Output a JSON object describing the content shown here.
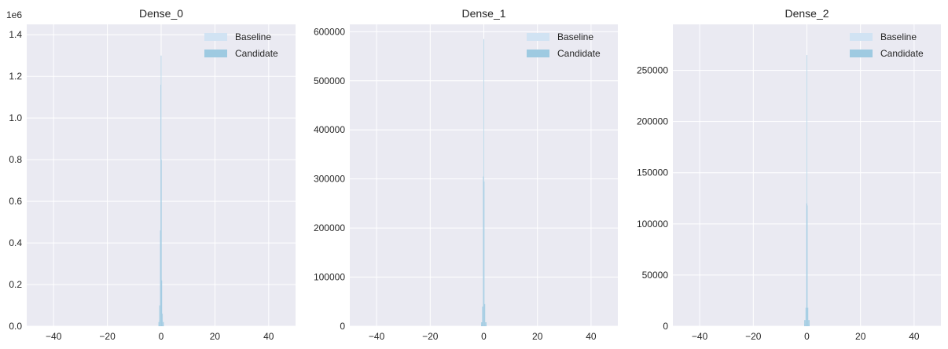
{
  "colors": {
    "background": "#eaeaf2",
    "grid": "#ffffff",
    "baseline": "#d1e3f3",
    "candidate": "#9ecae1",
    "text": "#262626"
  },
  "chart_data": [
    {
      "type": "histogram",
      "title": "Dense_0",
      "xlim": [
        -50,
        50
      ],
      "ylim": [
        0,
        1450000
      ],
      "x_ticks": [
        -40,
        -20,
        0,
        20,
        40
      ],
      "x_tick_labels": [
        "−40",
        "−20",
        "0",
        "20",
        "40"
      ],
      "y_ticks": [
        0,
        200000,
        400000,
        600000,
        800000,
        1000000,
        1200000,
        1400000
      ],
      "y_tick_labels": [
        "0.0",
        "0.2",
        "0.4",
        "0.6",
        "0.8",
        "1.0",
        "1.2",
        "1.4"
      ],
      "y_offset_label": "1e6",
      "legend": {
        "position": "upper right",
        "entries": [
          "Baseline",
          "Candidate"
        ]
      },
      "series": [
        {
          "name": "Baseline",
          "bins": [
            {
              "x0": -1.0,
              "x1": -0.7,
              "count": 3000
            },
            {
              "x0": -0.7,
              "x1": -0.4,
              "count": 30000
            },
            {
              "x0": -0.4,
              "x1": -0.2,
              "count": 460000
            },
            {
              "x0": -0.2,
              "x1": -0.1,
              "count": 1160000
            },
            {
              "x0": -0.1,
              "x1": 0.0,
              "count": 1300000
            },
            {
              "x0": 0.0,
              "x1": 0.15,
              "count": 800000
            },
            {
              "x0": 0.15,
              "x1": 0.35,
              "count": 220000
            },
            {
              "x0": 0.35,
              "x1": 0.6,
              "count": 30000
            },
            {
              "x0": 0.6,
              "x1": 1.0,
              "count": 3000
            }
          ]
        },
        {
          "name": "Candidate",
          "bins": [
            {
              "x0": -1.0,
              "x1": -0.7,
              "count": 20000
            },
            {
              "x0": -0.7,
              "x1": -0.4,
              "count": 100000
            },
            {
              "x0": -0.4,
              "x1": -0.2,
              "count": 460000
            },
            {
              "x0": -0.2,
              "x1": -0.1,
              "count": 1160000
            },
            {
              "x0": -0.1,
              "x1": 0.0,
              "count": 1300000
            },
            {
              "x0": 0.0,
              "x1": 0.15,
              "count": 800000
            },
            {
              "x0": 0.15,
              "x1": 0.35,
              "count": 220000
            },
            {
              "x0": 0.35,
              "x1": 0.6,
              "count": 60000
            },
            {
              "x0": 0.6,
              "x1": 1.0,
              "count": 20000
            }
          ]
        }
      ]
    },
    {
      "type": "histogram",
      "title": "Dense_1",
      "xlim": [
        -50,
        50
      ],
      "ylim": [
        0,
        615000
      ],
      "x_ticks": [
        -40,
        -20,
        0,
        20,
        40
      ],
      "x_tick_labels": [
        "−40",
        "−20",
        "0",
        "20",
        "40"
      ],
      "y_ticks": [
        0,
        100000,
        200000,
        300000,
        400000,
        500000,
        600000
      ],
      "y_tick_labels": [
        "0",
        "100000",
        "200000",
        "300000",
        "400000",
        "500000",
        "600000"
      ],
      "y_offset_label": "",
      "legend": {
        "position": "upper right",
        "entries": [
          "Baseline",
          "Candidate"
        ]
      },
      "series": [
        {
          "name": "Baseline",
          "bins": [
            {
              "x0": -1.0,
              "x1": -0.6,
              "count": 3000
            },
            {
              "x0": -0.6,
              "x1": -0.3,
              "count": 40000
            },
            {
              "x0": -0.3,
              "x1": -0.1,
              "count": 305000
            },
            {
              "x0": -0.1,
              "x1": 0.05,
              "count": 585000
            },
            {
              "x0": 0.05,
              "x1": 0.2,
              "count": 295000
            },
            {
              "x0": 0.2,
              "x1": 0.5,
              "count": 45000
            },
            {
              "x0": 0.5,
              "x1": 1.0,
              "count": 3000
            }
          ]
        },
        {
          "name": "Candidate",
          "bins": [
            {
              "x0": -1.0,
              "x1": -0.6,
              "count": 8000
            },
            {
              "x0": -0.6,
              "x1": -0.3,
              "count": 40000
            },
            {
              "x0": -0.3,
              "x1": -0.1,
              "count": 305000
            },
            {
              "x0": -0.1,
              "x1": 0.05,
              "count": 585000
            },
            {
              "x0": 0.05,
              "x1": 0.2,
              "count": 295000
            },
            {
              "x0": 0.2,
              "x1": 0.5,
              "count": 45000
            },
            {
              "x0": 0.5,
              "x1": 1.0,
              "count": 8000
            }
          ]
        }
      ]
    },
    {
      "type": "histogram",
      "title": "Dense_2",
      "xlim": [
        -50,
        50
      ],
      "ylim": [
        0,
        295000
      ],
      "x_ticks": [
        -40,
        -20,
        0,
        20,
        40
      ],
      "x_tick_labels": [
        "−40",
        "−20",
        "0",
        "20",
        "40"
      ],
      "y_ticks": [
        0,
        50000,
        100000,
        150000,
        200000,
        250000
      ],
      "y_tick_labels": [
        "0",
        "50000",
        "100000",
        "150000",
        "200000",
        "250000"
      ],
      "y_offset_label": "",
      "legend": {
        "position": "upper right",
        "entries": [
          "Baseline",
          "Candidate"
        ]
      },
      "series": [
        {
          "name": "Baseline",
          "bins": [
            {
              "x0": -1.0,
              "x1": -0.5,
              "count": 2000
            },
            {
              "x0": -0.5,
              "x1": -0.2,
              "count": 18000
            },
            {
              "x0": -0.2,
              "x1": -0.05,
              "count": 120000
            },
            {
              "x0": -0.05,
              "x1": 0.05,
              "count": 265000
            },
            {
              "x0": 0.05,
              "x1": 0.2,
              "count": 118000
            },
            {
              "x0": 0.2,
              "x1": 0.5,
              "count": 18000
            },
            {
              "x0": 0.5,
              "x1": 1.0,
              "count": 2000
            }
          ]
        },
        {
          "name": "Candidate",
          "bins": [
            {
              "x0": -1.0,
              "x1": -0.5,
              "count": 6000
            },
            {
              "x0": -0.5,
              "x1": -0.2,
              "count": 18000
            },
            {
              "x0": -0.2,
              "x1": -0.05,
              "count": 120000
            },
            {
              "x0": -0.05,
              "x1": 0.05,
              "count": 265000
            },
            {
              "x0": 0.05,
              "x1": 0.2,
              "count": 118000
            },
            {
              "x0": 0.2,
              "x1": 0.5,
              "count": 18000
            },
            {
              "x0": 0.5,
              "x1": 1.0,
              "count": 6000
            }
          ]
        }
      ]
    }
  ]
}
